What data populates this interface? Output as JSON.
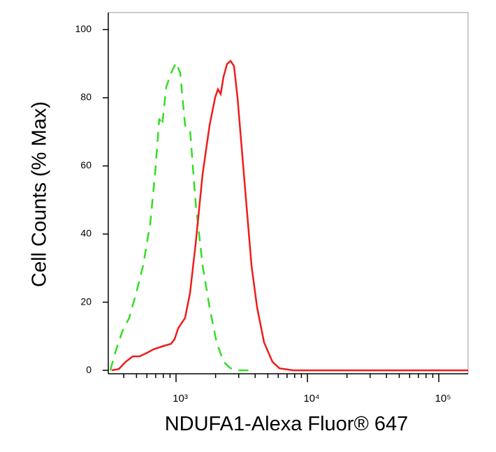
{
  "chart_data": {
    "type": "line",
    "xlabel": "NDUFA1-Alexa Fluor® 647",
    "ylabel": "Cell Counts (% Max)",
    "xscale": "log",
    "xlim": [
      305,
      167000
    ],
    "ylim": [
      -1,
      105
    ],
    "xticks": [
      {
        "value": 1000,
        "label": "10³"
      },
      {
        "value": 10000,
        "label": "10⁴"
      },
      {
        "value": 100000,
        "label": "10⁵"
      }
    ],
    "xminorticks": [
      400,
      500,
      600,
      700,
      800,
      900,
      2000,
      3000,
      4000,
      5000,
      6000,
      7000,
      8000,
      9000,
      20000,
      30000,
      40000,
      50000,
      60000,
      70000,
      80000,
      90000
    ],
    "yticks": [
      0,
      20,
      40,
      60,
      80,
      100
    ],
    "series": [
      {
        "color": "#ee1c1c",
        "linestyle": "solid",
        "x": [
          324,
          367,
          414,
          468,
          528,
          598,
          676,
          812,
          918,
          976,
          1037,
          1172,
          1277,
          1409,
          1592,
          1800,
          1985,
          2084,
          2188,
          2300,
          2444,
          2600,
          2763,
          2937,
          3320,
          3753,
          4138,
          4677,
          5418,
          6124,
          7834,
          10000,
          167000
        ],
        "values": [
          0,
          0.4,
          2.5,
          4.1,
          4.1,
          5.1,
          6.2,
          7.2,
          7.8,
          9.2,
          12.3,
          15.4,
          22.6,
          37,
          57.5,
          71.9,
          80.1,
          82.5,
          81.1,
          86.2,
          89.9,
          90.8,
          89.3,
          80.1,
          55.4,
          30.8,
          18.5,
          8.2,
          2.5,
          0.6,
          0,
          0,
          0
        ]
      },
      {
        "color": "#33dd22",
        "linestyle": "dashed",
        "x": [
          316,
          344,
          389,
          440,
          497,
          562,
          636,
          692,
          745,
          784,
          843,
          918,
          1000,
          1076,
          1172,
          1277,
          1409,
          1592,
          1800,
          2036,
          2300,
          2600,
          2937,
          3753
        ],
        "values": [
          0,
          5.1,
          11.3,
          15.4,
          22.6,
          30.8,
          43.1,
          57.5,
          73.9,
          71.9,
          83.2,
          87.3,
          90.3,
          87.3,
          71.9,
          70.8,
          49.3,
          30.8,
          18.5,
          8.2,
          2.5,
          0.6,
          0,
          0
        ]
      }
    ]
  }
}
